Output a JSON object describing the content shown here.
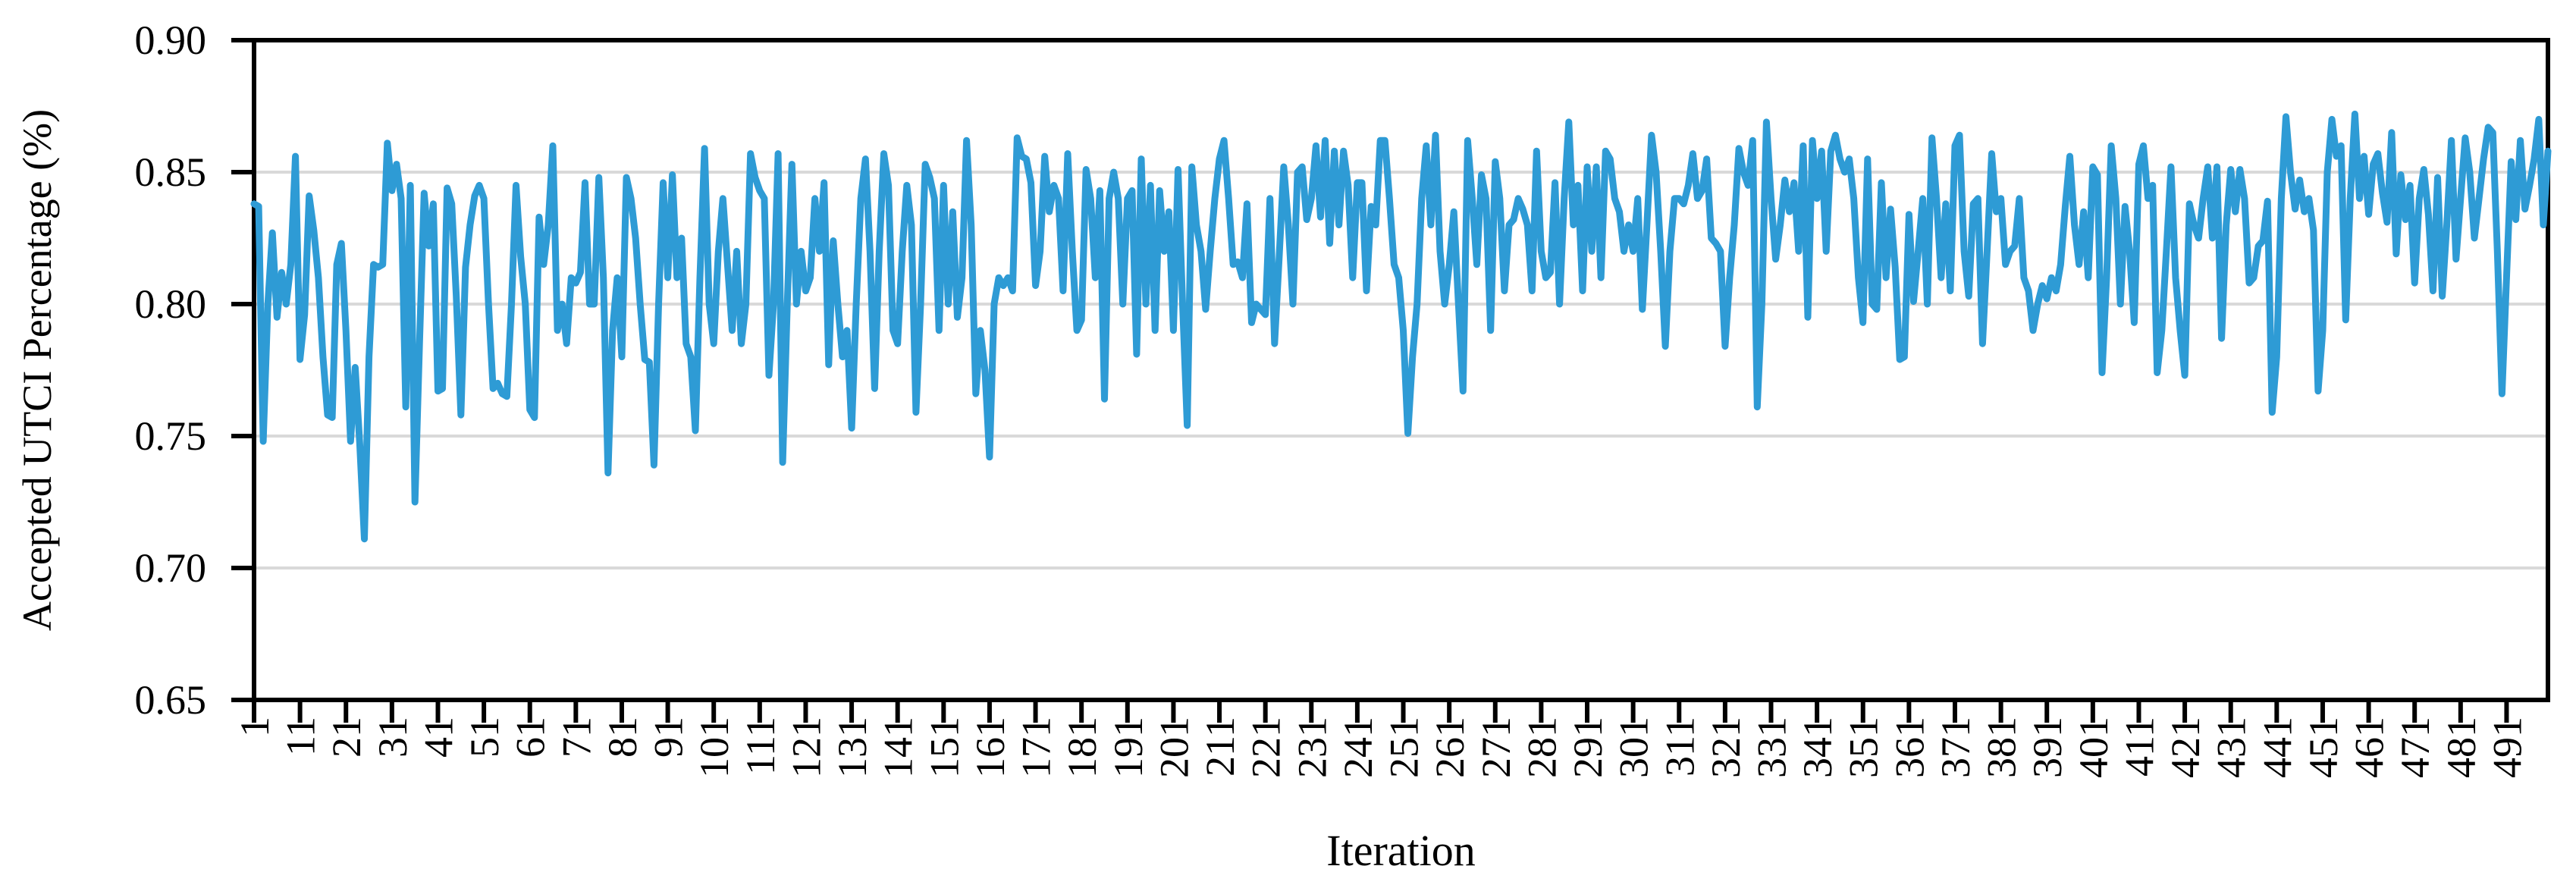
{
  "figure": {
    "background": "#FFFFFF",
    "y_axis_title": "Accepted UTCI Percentage (%)",
    "x_axis_title": "Iteration"
  },
  "chart_data": {
    "type": "line",
    "title": "",
    "xlabel": "Iteration",
    "ylabel": "Accepted UTCI Percentage (%)",
    "ylim": [
      0.65,
      0.9
    ],
    "ytick_labels": [
      "0.65",
      "0.70",
      "0.75",
      "0.80",
      "0.85",
      "0.90"
    ],
    "yticks": [
      0.65,
      0.7,
      0.75,
      0.8,
      0.85,
      0.9
    ],
    "grid": "horizontal",
    "legend": "none",
    "line_color": "#2E9BD5",
    "gridline_color": "#D9D9D9",
    "axis_color": "#000000",
    "x_start": 1,
    "x_step": 1,
    "x_count": 500,
    "xtick_every": 10,
    "xtick_labels": [
      "1",
      "11",
      "21",
      "31",
      "41",
      "51",
      "61",
      "71",
      "81",
      "91",
      "101",
      "111",
      "121",
      "131",
      "141",
      "151",
      "161",
      "171",
      "181",
      "191",
      "201",
      "211",
      "221",
      "231",
      "241",
      "251",
      "261",
      "271",
      "281",
      "291",
      "301",
      "311",
      "321",
      "331",
      "341",
      "351",
      "361",
      "371",
      "381",
      "391",
      "401",
      "411",
      "421",
      "431",
      "441",
      "451",
      "461",
      "471",
      "481",
      "491"
    ],
    "series": [
      {
        "name": "Accepted UTCI Percentage",
        "values": [
          0.838,
          0.837,
          0.748,
          0.8,
          0.827,
          0.795,
          0.812,
          0.8,
          0.815,
          0.856,
          0.779,
          0.796,
          0.841,
          0.828,
          0.81,
          0.78,
          0.758,
          0.757,
          0.815,
          0.823,
          0.79,
          0.748,
          0.776,
          0.747,
          0.711,
          0.78,
          0.815,
          0.814,
          0.815,
          0.861,
          0.843,
          0.853,
          0.84,
          0.761,
          0.845,
          0.725,
          0.785,
          0.842,
          0.822,
          0.838,
          0.767,
          0.768,
          0.844,
          0.838,
          0.803,
          0.758,
          0.814,
          0.83,
          0.841,
          0.845,
          0.84,
          0.8,
          0.768,
          0.77,
          0.766,
          0.765,
          0.8,
          0.845,
          0.818,
          0.8,
          0.76,
          0.757,
          0.833,
          0.815,
          0.83,
          0.86,
          0.79,
          0.8,
          0.785,
          0.81,
          0.808,
          0.812,
          0.846,
          0.8,
          0.8,
          0.848,
          0.81,
          0.736,
          0.79,
          0.81,
          0.78,
          0.848,
          0.84,
          0.825,
          0.8,
          0.779,
          0.778,
          0.739,
          0.8,
          0.846,
          0.81,
          0.849,
          0.81,
          0.825,
          0.785,
          0.78,
          0.752,
          0.81,
          0.859,
          0.8,
          0.785,
          0.82,
          0.84,
          0.815,
          0.79,
          0.82,
          0.785,
          0.8,
          0.857,
          0.848,
          0.843,
          0.84,
          0.773,
          0.8,
          0.857,
          0.74,
          0.8,
          0.853,
          0.8,
          0.82,
          0.805,
          0.81,
          0.84,
          0.82,
          0.846,
          0.777,
          0.824,
          0.8,
          0.78,
          0.79,
          0.753,
          0.8,
          0.84,
          0.855,
          0.82,
          0.768,
          0.82,
          0.857,
          0.845,
          0.79,
          0.785,
          0.82,
          0.845,
          0.83,
          0.759,
          0.8,
          0.853,
          0.848,
          0.84,
          0.79,
          0.845,
          0.8,
          0.835,
          0.795,
          0.81,
          0.862,
          0.83,
          0.766,
          0.79,
          0.775,
          0.742,
          0.8,
          0.81,
          0.807,
          0.81,
          0.805,
          0.863,
          0.856,
          0.855,
          0.846,
          0.807,
          0.82,
          0.856,
          0.835,
          0.845,
          0.84,
          0.805,
          0.857,
          0.82,
          0.79,
          0.794,
          0.851,
          0.84,
          0.81,
          0.843,
          0.764,
          0.84,
          0.85,
          0.84,
          0.8,
          0.84,
          0.843,
          0.781,
          0.855,
          0.8,
          0.845,
          0.79,
          0.843,
          0.82,
          0.835,
          0.79,
          0.851,
          0.8,
          0.754,
          0.852,
          0.83,
          0.82,
          0.798,
          0.82,
          0.84,
          0.855,
          0.862,
          0.84,
          0.815,
          0.816,
          0.81,
          0.838,
          0.793,
          0.8,
          0.798,
          0.796,
          0.84,
          0.785,
          0.818,
          0.852,
          0.83,
          0.8,
          0.85,
          0.852,
          0.832,
          0.84,
          0.86,
          0.833,
          0.862,
          0.823,
          0.858,
          0.83,
          0.858,
          0.845,
          0.81,
          0.846,
          0.846,
          0.805,
          0.837,
          0.83,
          0.862,
          0.862,
          0.84,
          0.815,
          0.81,
          0.79,
          0.751,
          0.78,
          0.8,
          0.84,
          0.86,
          0.83,
          0.864,
          0.82,
          0.8,
          0.815,
          0.835,
          0.8,
          0.767,
          0.862,
          0.84,
          0.815,
          0.849,
          0.84,
          0.79,
          0.854,
          0.84,
          0.805,
          0.83,
          0.832,
          0.84,
          0.836,
          0.83,
          0.805,
          0.858,
          0.82,
          0.81,
          0.812,
          0.846,
          0.8,
          0.84,
          0.869,
          0.83,
          0.845,
          0.805,
          0.852,
          0.82,
          0.852,
          0.81,
          0.858,
          0.855,
          0.84,
          0.835,
          0.82,
          0.83,
          0.82,
          0.84,
          0.798,
          0.83,
          0.864,
          0.85,
          0.82,
          0.784,
          0.82,
          0.84,
          0.84,
          0.838,
          0.845,
          0.857,
          0.84,
          0.843,
          0.855,
          0.825,
          0.823,
          0.82,
          0.784,
          0.81,
          0.83,
          0.859,
          0.85,
          0.845,
          0.862,
          0.761,
          0.8,
          0.869,
          0.84,
          0.817,
          0.83,
          0.847,
          0.835,
          0.846,
          0.82,
          0.86,
          0.795,
          0.862,
          0.84,
          0.858,
          0.82,
          0.858,
          0.864,
          0.855,
          0.85,
          0.855,
          0.84,
          0.81,
          0.793,
          0.855,
          0.8,
          0.798,
          0.846,
          0.81,
          0.836,
          0.814,
          0.779,
          0.78,
          0.834,
          0.801,
          0.82,
          0.84,
          0.8,
          0.863,
          0.84,
          0.81,
          0.838,
          0.805,
          0.86,
          0.864,
          0.82,
          0.803,
          0.838,
          0.84,
          0.785,
          0.82,
          0.857,
          0.835,
          0.84,
          0.815,
          0.82,
          0.822,
          0.84,
          0.81,
          0.805,
          0.79,
          0.8,
          0.807,
          0.802,
          0.81,
          0.805,
          0.815,
          0.837,
          0.856,
          0.83,
          0.815,
          0.835,
          0.81,
          0.852,
          0.849,
          0.774,
          0.81,
          0.86,
          0.84,
          0.8,
          0.837,
          0.82,
          0.793,
          0.853,
          0.86,
          0.84,
          0.845,
          0.774,
          0.79,
          0.82,
          0.852,
          0.81,
          0.79,
          0.773,
          0.838,
          0.83,
          0.825,
          0.84,
          0.852,
          0.825,
          0.852,
          0.787,
          0.83,
          0.851,
          0.835,
          0.851,
          0.84,
          0.808,
          0.81,
          0.822,
          0.824,
          0.839,
          0.759,
          0.78,
          0.84,
          0.871,
          0.85,
          0.836,
          0.847,
          0.835,
          0.84,
          0.828,
          0.767,
          0.79,
          0.85,
          0.87,
          0.856,
          0.86,
          0.794,
          0.84,
          0.872,
          0.84,
          0.856,
          0.834,
          0.853,
          0.857,
          0.842,
          0.831,
          0.865,
          0.819,
          0.849,
          0.832,
          0.845,
          0.808,
          0.84,
          0.851,
          0.834,
          0.805,
          0.848,
          0.803,
          0.83,
          0.862,
          0.817,
          0.84,
          0.863,
          0.85,
          0.825,
          0.84,
          0.855,
          0.867,
          0.865,
          0.82,
          0.766,
          0.81,
          0.854,
          0.832,
          0.862,
          0.836,
          0.845,
          0.855,
          0.87,
          0.83,
          0.858
        ]
      }
    ]
  }
}
